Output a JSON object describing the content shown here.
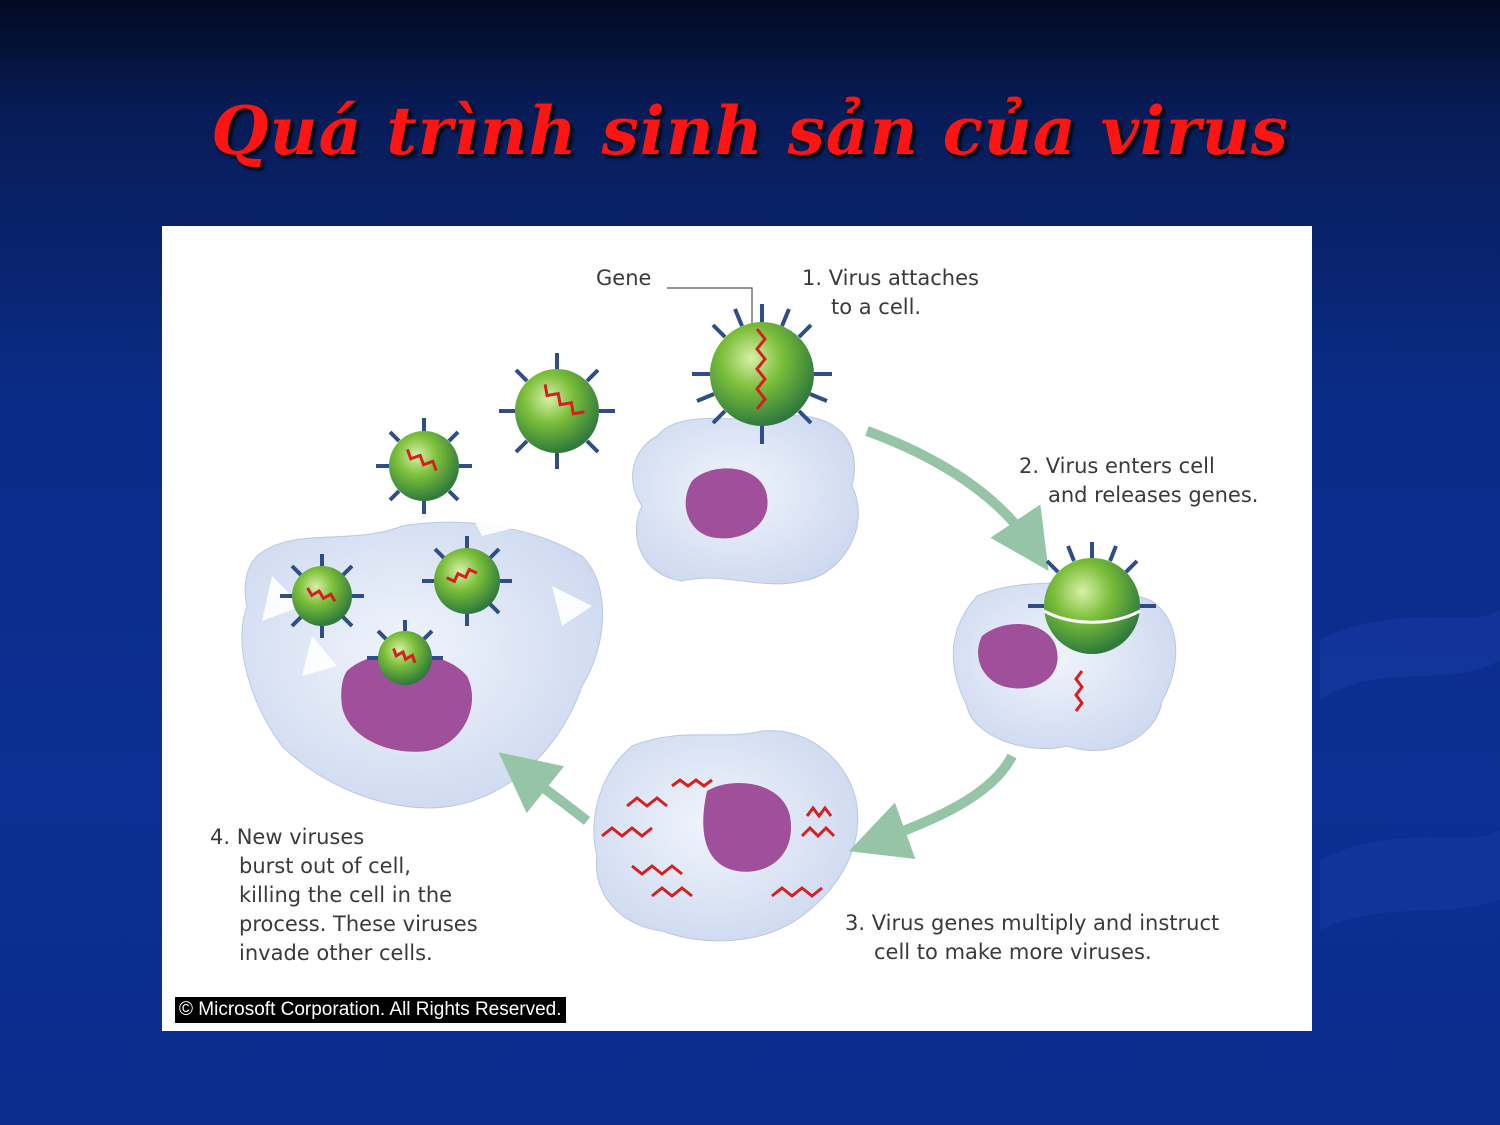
{
  "slide": {
    "title": "Quá trình sinh sản của virus"
  },
  "diagram": {
    "gene_label": "Gene",
    "step1": {
      "line1": "1. Virus attaches",
      "line2": "to a cell."
    },
    "step2": {
      "line1": "2. Virus enters cell",
      "line2": "and releases genes."
    },
    "step3": {
      "line1": "3. Virus genes multiply and instruct",
      "line2": "cell to make more viruses."
    },
    "step4": {
      "line1": "4. New viruses",
      "line2": "burst out of cell,",
      "line3": "killing the cell in the",
      "line4": "process. These viruses",
      "line5": "invade other cells."
    },
    "copyright": "© Microsoft Corporation. All Rights Reserved."
  },
  "colors": {
    "title": "#ff1414",
    "cell": "#dfe7f7",
    "nucleus": "#a04f9a",
    "virus": "#7cbf3a",
    "spike": "#2f4d86",
    "gene": "#d42020",
    "arrow": "#95c4a6"
  }
}
